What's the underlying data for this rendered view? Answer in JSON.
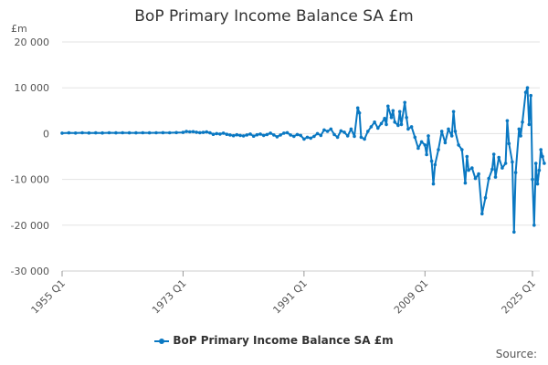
{
  "title": "BoP Primary Income Balance SA £m",
  "unit": "£m",
  "source": "Source:",
  "accent_color": "#0a78c2",
  "chart_data": {
    "type": "line",
    "title": "BoP Primary Income Balance SA £m",
    "ylabel": "£m",
    "ylim": [
      -30000,
      20000
    ],
    "yticks": [
      {
        "v": 20000,
        "label": "20 000"
      },
      {
        "v": 10000,
        "label": "10 000"
      },
      {
        "v": 0,
        "label": "0"
      },
      {
        "v": -10000,
        "label": "-10 000"
      },
      {
        "v": -20000,
        "label": "-20 000"
      },
      {
        "v": -30000,
        "label": "-30 000"
      }
    ],
    "xlim": [
      1955.0,
      2025.0
    ],
    "xticks": [
      {
        "v": 1955.0,
        "label": "1955 Q1"
      },
      {
        "v": 1973.0,
        "label": "1973 Q1"
      },
      {
        "v": 1991.0,
        "label": "1991 Q1"
      },
      {
        "v": 2009.0,
        "label": "2009 Q1"
      },
      {
        "v": 2025.0,
        "label": "2025 Q1"
      }
    ],
    "grid": true,
    "legend_position": "bottom",
    "series": [
      {
        "name": "BoP Primary Income Balance SA £m",
        "color": "#0a78c2",
        "points": [
          [
            1955.0,
            100
          ],
          [
            1956.0,
            150
          ],
          [
            1957.0,
            120
          ],
          [
            1958.0,
            180
          ],
          [
            1959.0,
            140
          ],
          [
            1960.0,
            160
          ],
          [
            1961.0,
            130
          ],
          [
            1962.0,
            170
          ],
          [
            1963.0,
            150
          ],
          [
            1964.0,
            180
          ],
          [
            1965.0,
            160
          ],
          [
            1966.0,
            150
          ],
          [
            1967.0,
            170
          ],
          [
            1968.0,
            160
          ],
          [
            1969.0,
            180
          ],
          [
            1970.0,
            200
          ],
          [
            1971.0,
            180
          ],
          [
            1972.0,
            220
          ],
          [
            1973.0,
            250
          ],
          [
            1973.5,
            450
          ],
          [
            1974.0,
            380
          ],
          [
            1974.5,
            420
          ],
          [
            1975.0,
            300
          ],
          [
            1975.5,
            200
          ],
          [
            1976.0,
            250
          ],
          [
            1976.5,
            350
          ],
          [
            1977.0,
            150
          ],
          [
            1977.5,
            -150
          ],
          [
            1978.0,
            0
          ],
          [
            1978.5,
            -100
          ],
          [
            1979.0,
            100
          ],
          [
            1979.5,
            -150
          ],
          [
            1980.0,
            -300
          ],
          [
            1980.5,
            -450
          ],
          [
            1981.0,
            -250
          ],
          [
            1981.5,
            -400
          ],
          [
            1982.0,
            -500
          ],
          [
            1982.5,
            -300
          ],
          [
            1983.0,
            -100
          ],
          [
            1983.5,
            -550
          ],
          [
            1984.0,
            -250
          ],
          [
            1984.5,
            -100
          ],
          [
            1985.0,
            -400
          ],
          [
            1985.5,
            -200
          ],
          [
            1986.0,
            100
          ],
          [
            1986.5,
            -300
          ],
          [
            1987.0,
            -700
          ],
          [
            1987.5,
            -300
          ],
          [
            1988.0,
            100
          ],
          [
            1988.5,
            200
          ],
          [
            1989.0,
            -300
          ],
          [
            1989.5,
            -600
          ],
          [
            1990.0,
            -200
          ],
          [
            1990.5,
            -400
          ],
          [
            1991.0,
            -1200
          ],
          [
            1991.5,
            -800
          ],
          [
            1992.0,
            -1000
          ],
          [
            1992.5,
            -600
          ],
          [
            1993.0,
            0
          ],
          [
            1993.5,
            -400
          ],
          [
            1994.0,
            800
          ],
          [
            1994.5,
            500
          ],
          [
            1995.0,
            1000
          ],
          [
            1995.5,
            -200
          ],
          [
            1996.0,
            -800
          ],
          [
            1996.5,
            600
          ],
          [
            1997.0,
            300
          ],
          [
            1997.5,
            -500
          ],
          [
            1998.0,
            1000
          ],
          [
            1998.5,
            -600
          ],
          [
            1999.0,
            5600
          ],
          [
            1999.25,
            4500
          ],
          [
            1999.5,
            -800
          ],
          [
            2000.0,
            -1200
          ],
          [
            2000.5,
            500
          ],
          [
            2001.0,
            1500
          ],
          [
            2001.5,
            2500
          ],
          [
            2002.0,
            1200
          ],
          [
            2002.5,
            2200
          ],
          [
            2003.0,
            3300
          ],
          [
            2003.25,
            2000
          ],
          [
            2003.5,
            6000
          ],
          [
            2004.0,
            3500
          ],
          [
            2004.25,
            5000
          ],
          [
            2004.5,
            2500
          ],
          [
            2005.0,
            1800
          ],
          [
            2005.25,
            4800
          ],
          [
            2005.5,
            2000
          ],
          [
            2006.0,
            6800
          ],
          [
            2006.25,
            3500
          ],
          [
            2006.5,
            1000
          ],
          [
            2007.0,
            1500
          ],
          [
            2007.5,
            -800
          ],
          [
            2008.0,
            -3200
          ],
          [
            2008.5,
            -1800
          ],
          [
            2009.0,
            -2500
          ],
          [
            2009.25,
            -4600
          ],
          [
            2009.5,
            -500
          ],
          [
            2010.0,
            -6000
          ],
          [
            2010.25,
            -11000
          ],
          [
            2010.5,
            -6800
          ],
          [
            2011.0,
            -3500
          ],
          [
            2011.5,
            500
          ],
          [
            2012.0,
            -2000
          ],
          [
            2012.5,
            1000
          ],
          [
            2013.0,
            -500
          ],
          [
            2013.25,
            4800
          ],
          [
            2013.5,
            500
          ],
          [
            2014.0,
            -2500
          ],
          [
            2014.5,
            -3500
          ],
          [
            2015.0,
            -10800
          ],
          [
            2015.25,
            -5000
          ],
          [
            2015.5,
            -8000
          ],
          [
            2016.0,
            -7500
          ],
          [
            2016.5,
            -9800
          ],
          [
            2017.0,
            -8800
          ],
          [
            2017.5,
            -17500
          ],
          [
            2018.0,
            -14000
          ],
          [
            2018.5,
            -9800
          ],
          [
            2019.0,
            -7800
          ],
          [
            2019.25,
            -4500
          ],
          [
            2019.5,
            -9500
          ],
          [
            2020.0,
            -5200
          ],
          [
            2020.5,
            -7500
          ],
          [
            2021.0,
            -6500
          ],
          [
            2021.25,
            2800
          ],
          [
            2021.5,
            -2200
          ],
          [
            2022.0,
            -6200
          ],
          [
            2022.25,
            -21500
          ],
          [
            2022.5,
            -8500
          ],
          [
            2023.0,
            1000
          ],
          [
            2023.25,
            -500
          ],
          [
            2023.5,
            2500
          ],
          [
            2024.0,
            9000
          ],
          [
            2024.25,
            10000
          ],
          [
            2024.5,
            2000
          ],
          [
            2024.75,
            8300
          ],
          [
            2025.0,
            -10000
          ],
          [
            2025.25,
            -20000
          ],
          [
            2025.5,
            -6500
          ],
          [
            2025.75,
            -11000
          ],
          [
            2026.0,
            -8000
          ],
          [
            2026.25,
            -3500
          ],
          [
            2026.5,
            -5000
          ],
          [
            2026.75,
            -6500
          ]
        ]
      }
    ]
  }
}
